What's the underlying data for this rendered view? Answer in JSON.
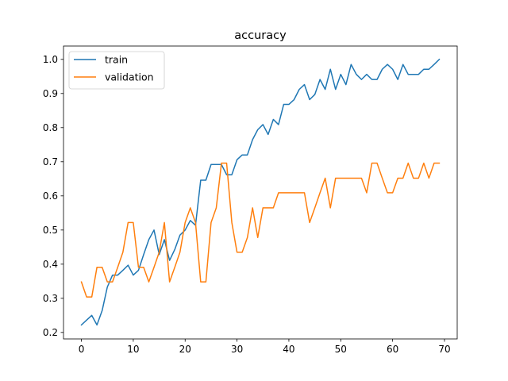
{
  "chart_data": {
    "type": "line",
    "title": "accuracy",
    "xlabel": "",
    "ylabel": "",
    "xlim": [
      -3.45,
      72.45
    ],
    "ylim": [
      0.181,
      1.039
    ],
    "xticks": [
      0,
      10,
      20,
      30,
      40,
      50,
      60,
      70
    ],
    "yticks": [
      0.2,
      0.3,
      0.4,
      0.5,
      0.6,
      0.7,
      0.8,
      0.9,
      1.0
    ],
    "xtick_labels": [
      "0",
      "10",
      "20",
      "30",
      "40",
      "50",
      "60",
      "70"
    ],
    "ytick_labels": [
      "0.2",
      "0.3",
      "0.4",
      "0.5",
      "0.6",
      "0.7",
      "0.8",
      "0.9",
      "1.0"
    ],
    "grid": false,
    "legend_position": "upper left",
    "series": [
      {
        "name": "train",
        "color": "#1f77b4",
        "x": [
          0,
          1,
          2,
          3,
          4,
          5,
          6,
          7,
          8,
          9,
          10,
          11,
          12,
          13,
          14,
          15,
          16,
          17,
          18,
          19,
          20,
          21,
          22,
          23,
          24,
          25,
          26,
          27,
          28,
          29,
          30,
          31,
          32,
          33,
          34,
          35,
          36,
          37,
          38,
          39,
          40,
          41,
          42,
          43,
          44,
          45,
          46,
          47,
          48,
          49,
          50,
          51,
          52,
          53,
          54,
          55,
          56,
          57,
          58,
          59,
          60,
          61,
          62,
          63,
          64,
          65,
          66,
          67,
          68,
          69
        ],
        "values": [
          0.222,
          0.236,
          0.25,
          0.222,
          0.264,
          0.333,
          0.368,
          0.368,
          0.382,
          0.397,
          0.368,
          0.382,
          0.428,
          0.472,
          0.5,
          0.428,
          0.472,
          0.411,
          0.443,
          0.485,
          0.5,
          0.528,
          0.514,
          0.646,
          0.646,
          0.692,
          0.692,
          0.692,
          0.662,
          0.662,
          0.706,
          0.72,
          0.72,
          0.765,
          0.794,
          0.809,
          0.78,
          0.824,
          0.809,
          0.868,
          0.868,
          0.882,
          0.912,
          0.926,
          0.882,
          0.897,
          0.941,
          0.912,
          0.971,
          0.912,
          0.956,
          0.926,
          0.985,
          0.956,
          0.941,
          0.956,
          0.941,
          0.941,
          0.971,
          0.985,
          0.971,
          0.941,
          0.985,
          0.956,
          0.956,
          0.956,
          0.971,
          0.971,
          0.985,
          1.0
        ]
      },
      {
        "name": "validation",
        "color": "#ff7f0e",
        "x": [
          0,
          1,
          2,
          3,
          4,
          5,
          6,
          7,
          8,
          9,
          10,
          11,
          12,
          13,
          14,
          15,
          16,
          17,
          18,
          19,
          20,
          21,
          22,
          23,
          24,
          25,
          26,
          27,
          28,
          29,
          30,
          31,
          32,
          33,
          34,
          35,
          36,
          37,
          38,
          39,
          40,
          41,
          42,
          43,
          44,
          45,
          46,
          47,
          48,
          49,
          50,
          51,
          52,
          53,
          54,
          55,
          56,
          57,
          58,
          59,
          60,
          61,
          62,
          63,
          64,
          65,
          66,
          67,
          68,
          69
        ],
        "values": [
          0.348,
          0.304,
          0.304,
          0.391,
          0.391,
          0.348,
          0.348,
          0.391,
          0.435,
          0.522,
          0.522,
          0.391,
          0.391,
          0.348,
          0.391,
          0.435,
          0.522,
          0.348,
          0.391,
          0.435,
          0.522,
          0.565,
          0.522,
          0.348,
          0.348,
          0.522,
          0.565,
          0.696,
          0.696,
          0.522,
          0.435,
          0.435,
          0.478,
          0.565,
          0.478,
          0.565,
          0.565,
          0.565,
          0.609,
          0.609,
          0.609,
          0.609,
          0.609,
          0.609,
          0.522,
          0.565,
          0.609,
          0.652,
          0.565,
          0.652,
          0.652,
          0.652,
          0.652,
          0.652,
          0.652,
          0.609,
          0.696,
          0.696,
          0.652,
          0.609,
          0.609,
          0.652,
          0.652,
          0.696,
          0.652,
          0.652,
          0.696,
          0.652,
          0.696,
          0.696
        ]
      }
    ]
  }
}
